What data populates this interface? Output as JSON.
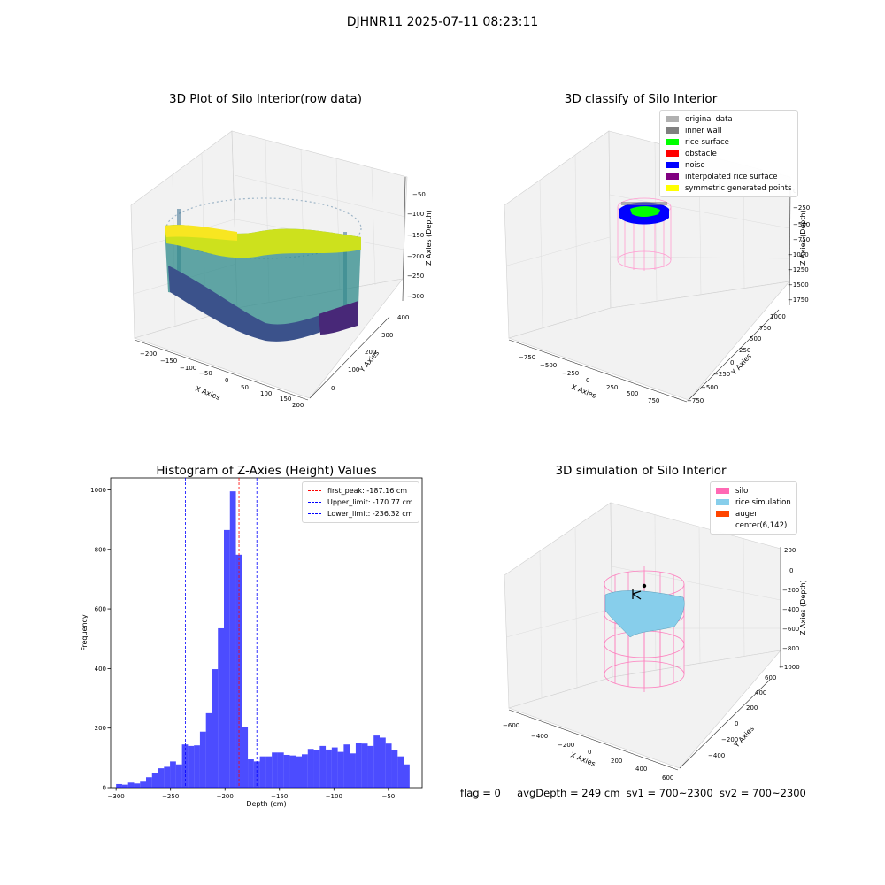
{
  "suptitle": "DJHNR11 2025-07-11 08:23:11",
  "panels": {
    "raw": {
      "title": "3D Plot of Silo Interior(row data)",
      "xlabel": "X Axies",
      "ylabel": "Y Axies",
      "zlabel": "Z Axies (Depth)",
      "xticks": [
        "−200",
        "−150",
        "−100",
        "−50",
        "0",
        "50",
        "100",
        "150",
        "200"
      ],
      "yticks": [
        "0",
        "100",
        "200",
        "300",
        "400"
      ],
      "zticks": [
        "−50",
        "−100",
        "−150",
        "−200",
        "−250",
        "−300"
      ]
    },
    "classify": {
      "title": "3D classify of Silo Interior",
      "xlabel": "X Axies",
      "ylabel": "Y Axies",
      "zlabel": "Z Axies (Depth)",
      "xticks": [
        "−750",
        "−500",
        "−250",
        "0",
        "250",
        "500",
        "750"
      ],
      "yticks": [
        "−750",
        "−500",
        "−250",
        "0",
        "250",
        "500",
        "750",
        "1000"
      ],
      "zticks": [
        "0",
        "−250",
        "−500",
        "−750",
        "−1000",
        "−1250",
        "−1500",
        "−1750"
      ],
      "legend": [
        {
          "label": "original data",
          "color": "#b0b0b0"
        },
        {
          "label": "inner wall",
          "color": "#808080"
        },
        {
          "label": "rice surface",
          "color": "#00ff00"
        },
        {
          "label": "obstacle",
          "color": "#ff0000"
        },
        {
          "label": "noise",
          "color": "#0000ff"
        },
        {
          "label": "interpolated rice surface",
          "color": "#800080"
        },
        {
          "label": "symmetric generated points",
          "color": "#ffff00"
        }
      ]
    },
    "sim": {
      "title": "3D simulation of Silo Interior",
      "xlabel": "X Axies",
      "ylabel": "Y Axies",
      "zlabel": "Z Axies (Depth)",
      "xticks": [
        "−600",
        "−400",
        "−200",
        "0",
        "200",
        "400",
        "600"
      ],
      "yticks": [
        "−400",
        "−200",
        "0",
        "200",
        "400",
        "600"
      ],
      "zticks": [
        "200",
        "0",
        "−200",
        "−400",
        "−600",
        "−800",
        "−1000"
      ],
      "legend": [
        {
          "label": "silo",
          "color": "#ff69b4"
        },
        {
          "label": "rice simulation",
          "color": "#87ceeb"
        },
        {
          "label": "auger",
          "color": "#ff4500"
        },
        {
          "label": "center(6,142)",
          "color": "#ffffff"
        }
      ]
    }
  },
  "status": {
    "flag": "flag = 0",
    "avg_depth": "avgDepth = 249 cm",
    "sv1": "sv1 = 700~2300",
    "sv2": "sv2 = 700~2300"
  },
  "chart_data": {
    "type": "bar",
    "title": "Histogram of Z-Axies (Height) Values",
    "xlabel": "Depth (cm)",
    "ylabel": "Frequency",
    "xlim": [
      -305,
      -19
    ],
    "ylim": [
      0,
      1040
    ],
    "xticks": [
      -300,
      -250,
      -200,
      -150,
      -100,
      -50
    ],
    "xtick_labels": [
      "−300",
      "−250",
      "−200",
      "−150",
      "−100",
      "−50"
    ],
    "yticks": [
      0,
      200,
      400,
      600,
      800,
      1000
    ],
    "bin_width": 5.5,
    "bins_start": -300,
    "values": [
      12,
      10,
      17,
      14,
      20,
      35,
      48,
      65,
      70,
      88,
      78,
      145,
      140,
      142,
      188,
      250,
      398,
      535,
      865,
      995,
      782,
      205,
      95,
      88,
      105,
      105,
      118,
      118,
      110,
      108,
      105,
      112,
      130,
      125,
      140,
      128,
      135,
      120,
      145,
      115,
      150,
      148,
      140,
      175,
      168,
      148,
      125,
      105,
      78
    ],
    "color": "#0000ff",
    "bar_opacity": 0.7,
    "lines": [
      {
        "label": "first_peak: -187.16 cm",
        "x": -187.16,
        "color": "#ff0000"
      },
      {
        "label": "Upper_limit: -170.77 cm",
        "x": -170.77,
        "color": "#0000ff"
      },
      {
        "label": "Lower_limit: -236.32 cm",
        "x": -236.32,
        "color": "#0000ff"
      }
    ],
    "legend_position": "top-right"
  }
}
